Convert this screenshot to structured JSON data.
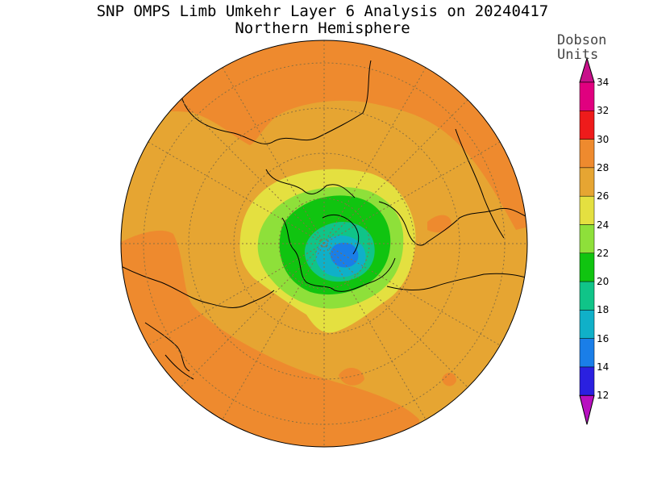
{
  "title": {
    "line1": "SNP OMPS Limb Umkehr Layer 6 Analysis on 20240417",
    "line2": "Northern Hemisphere"
  },
  "legend": {
    "unit_line1": "Dobson",
    "unit_line2": "Units",
    "levels": [
      {
        "value": "34",
        "color": "#e0007f"
      },
      {
        "value": "32",
        "color": "#ee1b1b"
      },
      {
        "value": "30",
        "color": "#ee8a2e"
      },
      {
        "value": "28",
        "color": "#e6a532"
      },
      {
        "value": "26",
        "color": "#e4e040"
      },
      {
        "value": "24",
        "color": "#8ee03a"
      },
      {
        "value": "22",
        "color": "#10c410"
      },
      {
        "value": "20",
        "color": "#10c488"
      },
      {
        "value": "18",
        "color": "#10b0c8"
      },
      {
        "value": "16",
        "color": "#1a7ee8"
      },
      {
        "value": "14",
        "color": "#2a20e0"
      },
      {
        "value": "12",
        "color": "#7a10d8"
      }
    ],
    "top_arrow_color": "#c8108a",
    "bottom_arrow_color": "#b810c0"
  },
  "map": {
    "projection": "polar stereographic, North Pole centered",
    "background_color": "#e6a532"
  }
}
